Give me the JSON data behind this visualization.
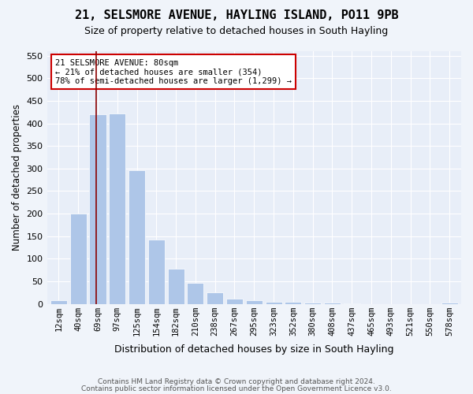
{
  "title": "21, SELSMORE AVENUE, HAYLING ISLAND, PO11 9PB",
  "subtitle": "Size of property relative to detached houses in South Hayling",
  "xlabel": "Distribution of detached houses by size in South Hayling",
  "ylabel": "Number of detached properties",
  "categories": [
    "12sqm",
    "40sqm",
    "69sqm",
    "97sqm",
    "125sqm",
    "154sqm",
    "182sqm",
    "210sqm",
    "238sqm",
    "267sqm",
    "295sqm",
    "323sqm",
    "352sqm",
    "380sqm",
    "408sqm",
    "437sqm",
    "465sqm",
    "493sqm",
    "521sqm",
    "550sqm",
    "578sqm"
  ],
  "values": [
    8,
    200,
    420,
    422,
    297,
    142,
    78,
    47,
    25,
    12,
    8,
    5,
    4,
    2,
    2,
    1,
    0,
    0,
    0,
    0,
    3
  ],
  "bar_color": "#aec6e8",
  "marker_color": "#8b0000",
  "bin_starts": [
    12,
    40,
    69,
    97,
    125,
    154,
    182,
    210,
    238,
    267,
    295,
    323,
    352,
    380,
    408,
    437,
    465,
    493,
    521,
    550,
    578
  ],
  "property_sqm": 80,
  "ylim": [
    0,
    560
  ],
  "yticks": [
    0,
    50,
    100,
    150,
    200,
    250,
    300,
    350,
    400,
    450,
    500,
    550
  ],
  "annotation_lines": [
    "21 SELSMORE AVENUE: 80sqm",
    "← 21% of detached houses are smaller (354)",
    "78% of semi-detached houses are larger (1,299) →"
  ],
  "footnote1": "Contains HM Land Registry data © Crown copyright and database right 2024.",
  "footnote2": "Contains public sector information licensed under the Open Government Licence v3.0.",
  "background_color": "#f0f4fa",
  "plot_background": "#e8eef8"
}
